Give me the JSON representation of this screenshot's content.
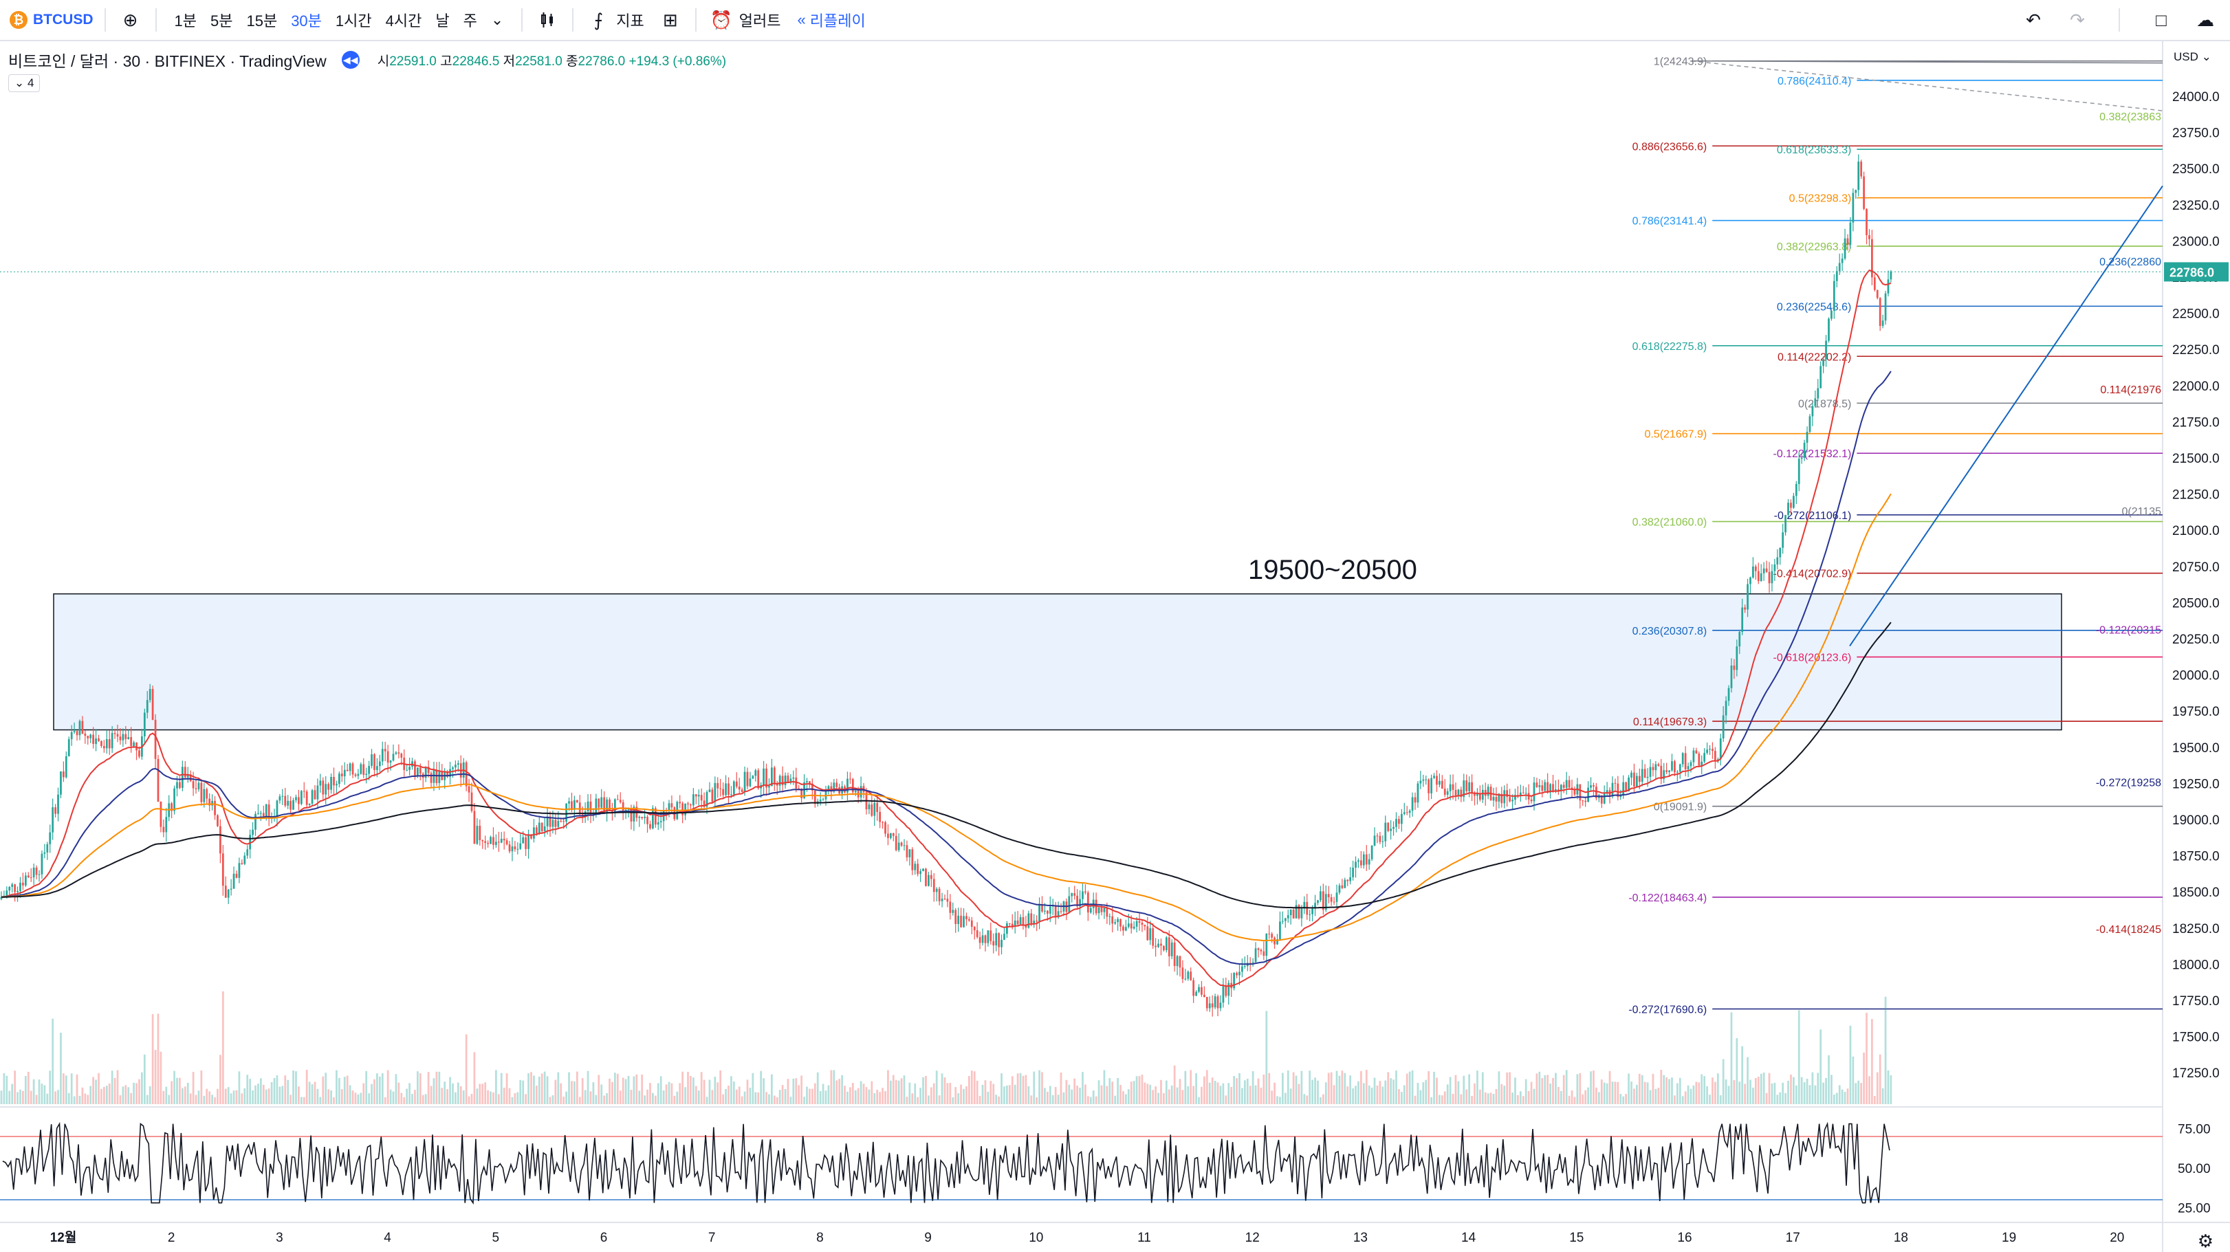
{
  "toolbar": {
    "symbol": "BTCUSD",
    "symbol_icon": "₿",
    "intervals": [
      "1분",
      "5분",
      "15분",
      "30분",
      "1시간",
      "4시간",
      "날",
      "주"
    ],
    "active_interval": "30분",
    "indicators_label": "지표",
    "alert_label": "얼러트",
    "replay_label": "리플레이",
    "icons": [
      "plus-circle-icon",
      "chevron-down-icon",
      "candles-icon",
      "indicators-icon",
      "layout-icon",
      "alarm-icon",
      "rewind-icon",
      "undo-icon",
      "redo-icon",
      "square-icon",
      "cloud-icon"
    ]
  },
  "legend": {
    "title": "비트코인 / 달러 · 30 · BITFINEX · TradingView",
    "open_label": "시",
    "open": "22591.0",
    "high_label": "고",
    "high": "22846.5",
    "low_label": "저",
    "low": "22581.0",
    "close_label": "종",
    "close": "22786.0",
    "change": "+194.3 (+0.86%)",
    "collapse_count": "4"
  },
  "colors": {
    "up": "#26a69a",
    "down": "#ef5350",
    "accent": "#2962ff",
    "ema_red": "#e53935",
    "ema_blue": "#283593",
    "ema_orange": "#fb8c00",
    "ema_black": "#131722",
    "zone_fill": "#eaf2fd"
  },
  "chart_data": {
    "type": "candlestick",
    "symbol": "BTCUSD",
    "price_axis": {
      "currency": "USD",
      "ticks": [
        "24000.0",
        "23750.0",
        "23500.0",
        "23250.0",
        "23000.0",
        "22750.0",
        "22500.0",
        "22250.0",
        "22000.0",
        "21750.0",
        "21500.0",
        "21250.0",
        "21000.0",
        "20750.0",
        "20500.0",
        "20250.0",
        "20000.0",
        "19750.0",
        "19500.0",
        "19250.0",
        "19000.0",
        "18750.0",
        "18500.0",
        "18250.0",
        "18000.0",
        "17750.0",
        "17500.0",
        "17250.0"
      ],
      "tick_values": [
        24000,
        23750,
        23500,
        23250,
        23000,
        22750,
        22500,
        22250,
        22000,
        21750,
        21500,
        21250,
        21000,
        20750,
        20500,
        20250,
        20000,
        19750,
        19500,
        19250,
        19000,
        18750,
        18500,
        18250,
        18000,
        17750,
        17500,
        17250
      ],
      "last_price": "22786.0",
      "last_value": 22786
    },
    "time_axis": {
      "labels": [
        "12월",
        "2",
        "3",
        "4",
        "5",
        "6",
        "7",
        "8",
        "9",
        "10",
        "11",
        "12",
        "13",
        "14",
        "15",
        "16",
        "17",
        "18",
        "19",
        "20"
      ]
    },
    "zone": {
      "label": "19500~20500",
      "low": 19620,
      "high": 20560
    },
    "fib_levels": [
      {
        "label": "1(24243.9)",
        "value": 24243.9,
        "color": "#787b86",
        "x_start": 0.76
      },
      {
        "label": "0.786(24110.4)",
        "value": 24110.4,
        "color": "#2196f3",
        "x_start": 0.83
      },
      {
        "label": "0.886(23656.6)",
        "value": 23656.6,
        "color": "#b71c1c",
        "x_start": 0.76
      },
      {
        "label": "0.618(23633.3)",
        "value": 23633.3,
        "color": "#26a69a",
        "x_start": 0.83
      },
      {
        "label": "0.5(23298.3)",
        "value": 23298.3,
        "color": "#fb8c00",
        "x_start": 0.83
      },
      {
        "label": "0.786(23141.4)",
        "value": 23141.4,
        "color": "#2196f3",
        "x_start": 0.76
      },
      {
        "label": "0.382(22963.8)",
        "value": 22963.8,
        "color": "#8bc34a",
        "x_start": 0.83
      },
      {
        "label": "0.236(22548.6)",
        "value": 22548.6,
        "color": "#1565c0",
        "x_start": 0.83
      },
      {
        "label": "0.618(22275.8)",
        "value": 22275.8,
        "color": "#26a69a",
        "x_start": 0.76
      },
      {
        "label": "0.114(22202.2)",
        "value": 22202.2,
        "color": "#b71c1c",
        "x_start": 0.83
      },
      {
        "label": "0(21878.5)",
        "value": 21878.5,
        "color": "#787b86",
        "x_start": 0.83
      },
      {
        "label": "0.5(21667.9)",
        "value": 21667.9,
        "color": "#fb8c00",
        "x_start": 0.76
      },
      {
        "label": "-0.122(21532.1)",
        "value": 21532.1,
        "color": "#9c27b0",
        "x_start": 0.83
      },
      {
        "label": "-0.272(21106.1)",
        "value": 21106.1,
        "color": "#1a237e",
        "x_start": 0.83
      },
      {
        "label": "0.382(21060.0)",
        "value": 21060.0,
        "color": "#8bc34a",
        "x_start": 0.76
      },
      {
        "label": "-0.414(20702.9)",
        "value": 20702.9,
        "color": "#b71c1c",
        "x_start": 0.83
      },
      {
        "label": "0.236(20307.8)",
        "value": 20307.8,
        "color": "#1565c0",
        "x_start": 0.76
      },
      {
        "label": "-0.618(20123.6)",
        "value": 20123.6,
        "color": "#e91e63",
        "x_start": 0.83
      },
      {
        "label": "0.114(19679.3)",
        "value": 19679.3,
        "color": "#b71c1c",
        "x_start": 0.76
      },
      {
        "label": "0(19091.9)",
        "value": 19091.9,
        "color": "#787b86",
        "x_start": 0.76
      },
      {
        "label": "-0.122(18463.4)",
        "value": 18463.4,
        "color": "#9c27b0",
        "x_start": 0.76
      },
      {
        "label": "-0.272(17690.6)",
        "value": 17690.6,
        "color": "#1a237e",
        "x_start": 0.76
      }
    ],
    "right_edge_labels": [
      {
        "label": "0.382(23863",
        "value": 23863,
        "color": "#8bc34a"
      },
      {
        "label": "0.236(22860",
        "value": 22860,
        "color": "#1565c0"
      },
      {
        "label": "0.114(21976",
        "value": 21976,
        "color": "#b71c1c"
      },
      {
        "label": "0(21135",
        "value": 21135,
        "color": "#787b86"
      },
      {
        "label": "-0.122(20315",
        "value": 20315,
        "color": "#9c27b0"
      },
      {
        "label": "-0.272(19258",
        "value": 19258,
        "color": "#1a237e"
      },
      {
        "label": "-0.414(18245",
        "value": 18245,
        "color": "#b71c1c"
      }
    ],
    "price_path": [
      [
        0.0,
        18450
      ],
      [
        0.02,
        18700
      ],
      [
        0.03,
        19350
      ],
      [
        0.035,
        19650
      ],
      [
        0.05,
        19550
      ],
      [
        0.065,
        19500
      ],
      [
        0.07,
        19950
      ],
      [
        0.075,
        18900
      ],
      [
        0.085,
        19300
      ],
      [
        0.1,
        19100
      ],
      [
        0.105,
        18450
      ],
      [
        0.12,
        19050
      ],
      [
        0.14,
        19150
      ],
      [
        0.16,
        19300
      ],
      [
        0.18,
        19450
      ],
      [
        0.2,
        19300
      ],
      [
        0.215,
        19350
      ],
      [
        0.22,
        18900
      ],
      [
        0.24,
        18800
      ],
      [
        0.26,
        19050
      ],
      [
        0.28,
        19100
      ],
      [
        0.3,
        19000
      ],
      [
        0.32,
        19100
      ],
      [
        0.34,
        19250
      ],
      [
        0.36,
        19300
      ],
      [
        0.38,
        19150
      ],
      [
        0.39,
        19250
      ],
      [
        0.4,
        19150
      ],
      [
        0.42,
        18750
      ],
      [
        0.43,
        18550
      ],
      [
        0.44,
        18350
      ],
      [
        0.46,
        18150
      ],
      [
        0.48,
        18350
      ],
      [
        0.5,
        18450
      ],
      [
        0.52,
        18300
      ],
      [
        0.54,
        18150
      ],
      [
        0.55,
        17900
      ],
      [
        0.56,
        17700
      ],
      [
        0.58,
        18050
      ],
      [
        0.6,
        18350
      ],
      [
        0.62,
        18500
      ],
      [
        0.64,
        18900
      ],
      [
        0.66,
        19250
      ],
      [
        0.68,
        19200
      ],
      [
        0.7,
        19150
      ],
      [
        0.72,
        19250
      ],
      [
        0.74,
        19150
      ],
      [
        0.76,
        19300
      ],
      [
        0.78,
        19400
      ],
      [
        0.795,
        19450
      ],
      [
        0.8,
        19900
      ],
      [
        0.81,
        20700
      ],
      [
        0.82,
        20650
      ],
      [
        0.83,
        21300
      ],
      [
        0.84,
        21900
      ],
      [
        0.85,
        22800
      ],
      [
        0.855,
        23000
      ],
      [
        0.86,
        23550
      ],
      [
        0.865,
        22950
      ],
      [
        0.87,
        22400
      ],
      [
        0.875,
        22786
      ]
    ],
    "rsi": {
      "ticks": [
        "75.00",
        "50.00",
        "25.00"
      ],
      "tick_values": [
        75,
        50,
        25
      ],
      "upper": 70,
      "lower": 30
    }
  }
}
